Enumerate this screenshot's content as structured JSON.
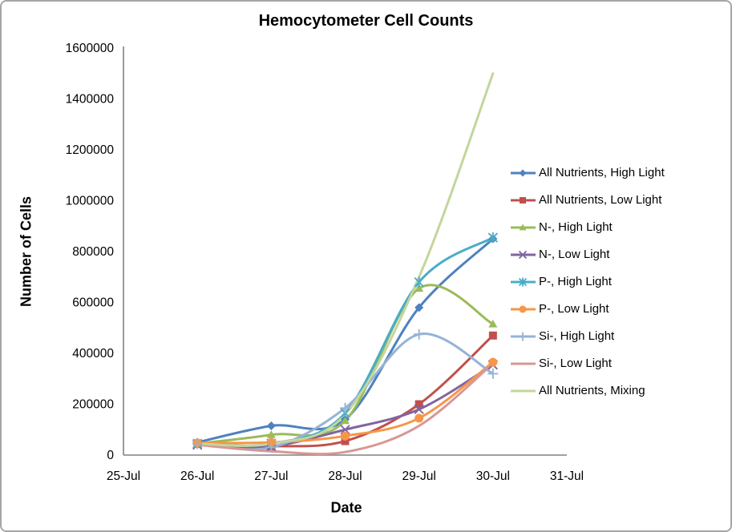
{
  "chart_data": {
    "type": "line",
    "title": "Hemocytometer Cell Counts",
    "xlabel": "Date",
    "ylabel": "Number of Cells",
    "categories": [
      "25-Jul",
      "26-Jul",
      "27-Jul",
      "28-Jul",
      "29-Jul",
      "30-Jul",
      "31-Jul"
    ],
    "data_start_category": "26-Jul",
    "ylim": [
      0,
      1600000
    ],
    "y_tick_step": 200000,
    "grid": false,
    "smooth_lines": true,
    "legend_position": "right",
    "axis_color": "#808080",
    "text_color": "#000000",
    "series": [
      {
        "name": "All Nutrients, High Light",
        "color": "#4F81BD",
        "marker": "diamond",
        "values": [
          50000,
          115000,
          140000,
          580000,
          850000
        ]
      },
      {
        "name": "All Nutrients, Low Light",
        "color": "#C0504D",
        "marker": "square",
        "values": [
          45000,
          35000,
          55000,
          200000,
          470000
        ]
      },
      {
        "name": "N-, High Light",
        "color": "#9BBB59",
        "marker": "triangle",
        "values": [
          45000,
          80000,
          135000,
          655000,
          515000
        ]
      },
      {
        "name": "N-, Low Light",
        "color": "#8064A2",
        "marker": "x",
        "values": [
          40000,
          35000,
          100000,
          180000,
          355000
        ]
      },
      {
        "name": "P-, High Light",
        "color": "#4BACC6",
        "marker": "star",
        "values": [
          45000,
          45000,
          165000,
          680000,
          855000
        ]
      },
      {
        "name": "P-, Low Light",
        "color": "#F79646",
        "marker": "circle",
        "values": [
          48000,
          50000,
          75000,
          145000,
          365000
        ]
      },
      {
        "name": "Si-, High Light",
        "color": "#95B3D7",
        "marker": "plus",
        "values": [
          45000,
          30000,
          185000,
          475000,
          320000
        ]
      },
      {
        "name": "Si-, Low Light",
        "color": "#D99694",
        "marker": "none",
        "values": [
          40000,
          15000,
          12000,
          115000,
          360000
        ]
      },
      {
        "name": "All Nutrients, Mixing",
        "color": "#C3D69B",
        "marker": "none",
        "values": [
          45000,
          45000,
          160000,
          700000,
          1500000
        ]
      }
    ]
  }
}
